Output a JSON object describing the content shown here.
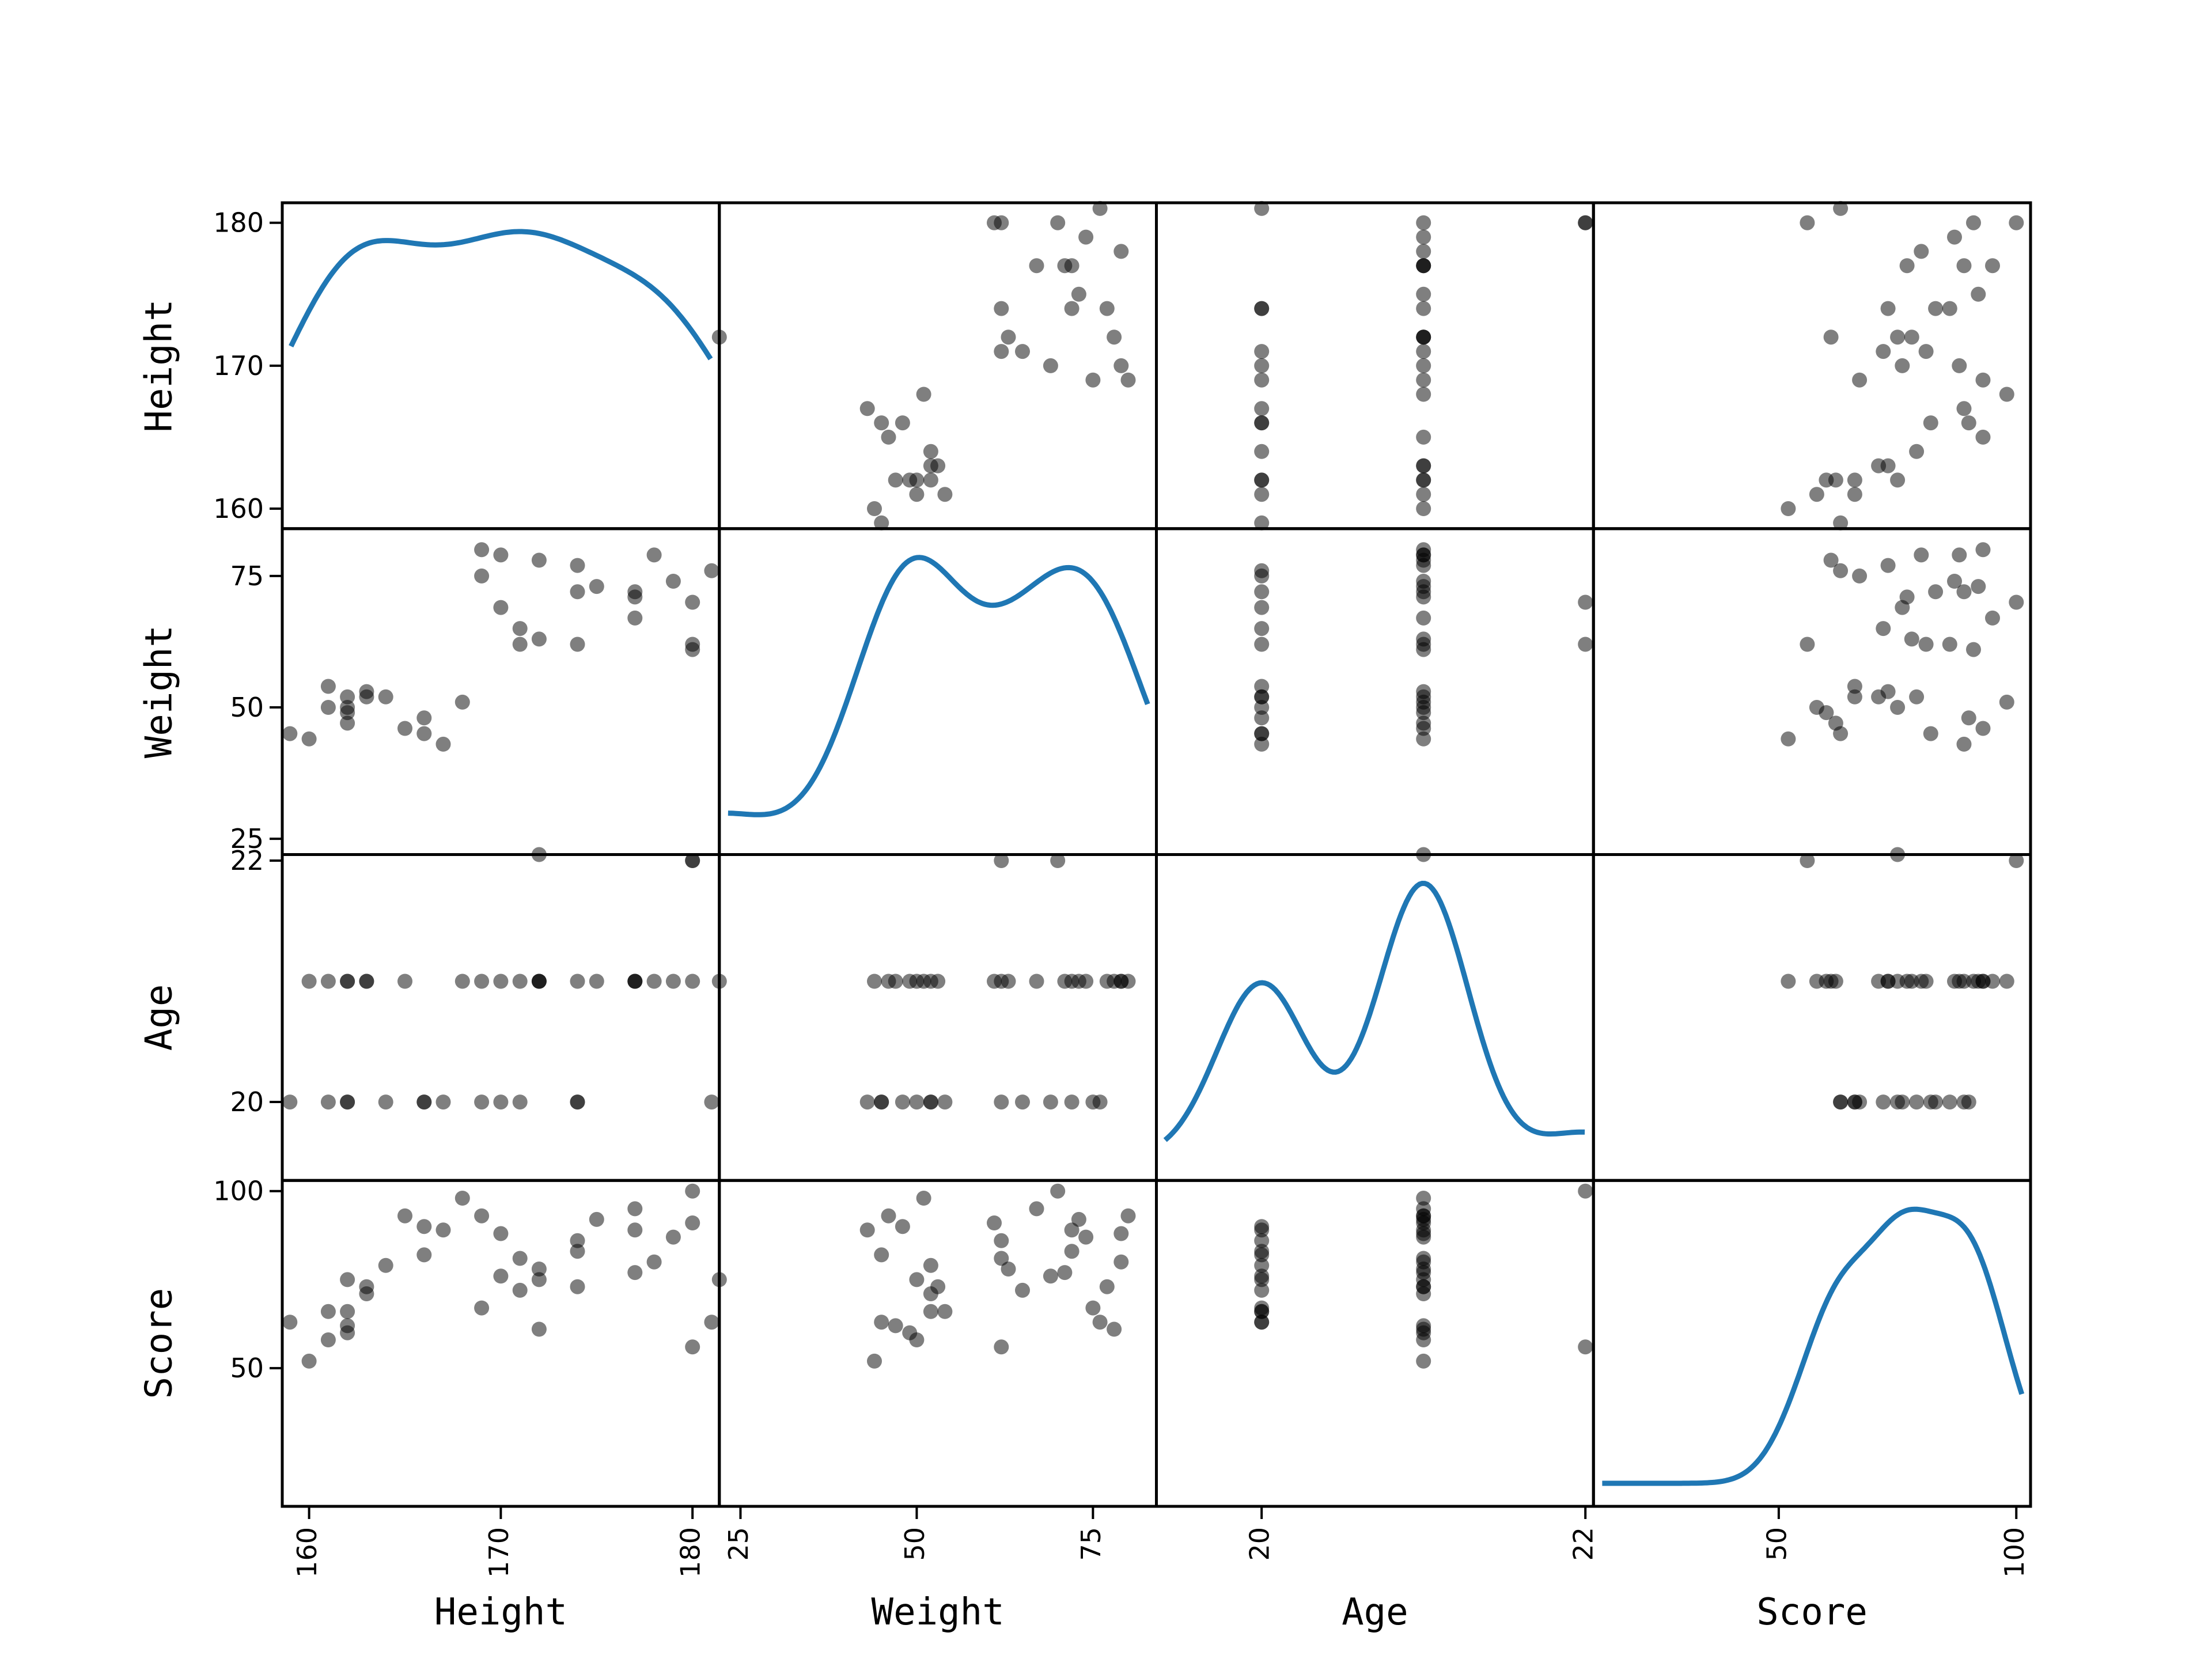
{
  "chart_data": {
    "type": "scatter_matrix",
    "variables": [
      "Height",
      "Weight",
      "Age",
      "Score"
    ],
    "diagonal": "kde",
    "kde_color": "#1f77b4",
    "point_color": "#000000",
    "point_alpha": 0.5,
    "ranges": {
      "Height": [
        158.6,
        181.4
      ],
      "Weight": [
        22,
        84
      ],
      "Age": [
        19.35,
        22.05
      ],
      "Score": [
        11,
        103
      ]
    },
    "ticks": {
      "Height": [
        160,
        170,
        180
      ],
      "Weight": [
        25,
        50,
        75
      ],
      "Age": [
        20,
        22
      ],
      "Score": [
        50,
        100
      ]
    },
    "tick_labels": {
      "Height": [
        "160",
        "170",
        "180"
      ],
      "Weight": [
        "25",
        "50",
        "75"
      ],
      "Age": [
        "20",
        "22"
      ],
      "Score": [
        "50",
        "100"
      ]
    },
    "y_tick_labels": {
      "Height": [
        "160",
        "170",
        "180"
      ],
      "Weight": [
        "25",
        "50",
        "75"
      ],
      "Age": [
        "20",
        "22"
      ],
      "Score": [
        "50",
        "100"
      ]
    },
    "y_tick_values": {
      "Height": [
        160,
        170,
        180
      ],
      "Weight": [
        25,
        50,
        75
      ],
      "Age": [
        20,
        22
      ],
      "Score": [
        50,
        100
      ]
    },
    "rows": [
      {
        "Height": 180,
        "Weight": 62,
        "Age": 22,
        "Score": 56
      },
      {
        "Height": 172,
        "Weight": 22,
        "Age": 21,
        "Score": 75
      },
      {
        "Height": 162,
        "Weight": 50,
        "Age": 20,
        "Score": 75
      },
      {
        "Height": 162,
        "Weight": 47,
        "Age": 21,
        "Score": 62
      },
      {
        "Height": 162,
        "Weight": 49,
        "Age": 21,
        "Score": 60
      },
      {
        "Height": 160,
        "Weight": 44,
        "Age": 21,
        "Score": 52
      },
      {
        "Height": 167,
        "Weight": 43,
        "Age": 20,
        "Score": 89
      },
      {
        "Height": 166,
        "Weight": 45,
        "Age": 20,
        "Score": 82
      },
      {
        "Height": 165,
        "Weight": 46,
        "Age": 21,
        "Score": 93
      },
      {
        "Height": 164,
        "Weight": 52,
        "Age": 20,
        "Score": 79
      },
      {
        "Height": 163,
        "Weight": 53,
        "Age": 21,
        "Score": 73
      },
      {
        "Height": 166,
        "Weight": 48,
        "Age": 20,
        "Score": 90
      },
      {
        "Height": 168,
        "Weight": 51,
        "Age": 21,
        "Score": 98
      },
      {
        "Height": 161,
        "Weight": 54,
        "Age": 20,
        "Score": 66
      },
      {
        "Height": 159,
        "Weight": 45,
        "Age": 20,
        "Score": 63
      },
      {
        "Height": 161,
        "Weight": 50,
        "Age": 21,
        "Score": 58
      },
      {
        "Height": 162,
        "Weight": 52,
        "Age": 20,
        "Score": 66
      },
      {
        "Height": 163,
        "Weight": 52,
        "Age": 21,
        "Score": 71
      },
      {
        "Height": 180,
        "Weight": 61,
        "Age": 21,
        "Score": 91
      },
      {
        "Height": 174,
        "Weight": 62,
        "Age": 20,
        "Score": 86
      },
      {
        "Height": 172,
        "Weight": 63,
        "Age": 21,
        "Score": 78
      },
      {
        "Height": 171,
        "Weight": 62,
        "Age": 21,
        "Score": 81
      },
      {
        "Height": 171,
        "Weight": 65,
        "Age": 20,
        "Score": 72
      },
      {
        "Height": 170,
        "Weight": 69,
        "Age": 20,
        "Score": 76
      },
      {
        "Height": 177,
        "Weight": 67,
        "Age": 21,
        "Score": 95
      },
      {
        "Height": 180,
        "Weight": 70,
        "Age": 22,
        "Score": 100
      },
      {
        "Height": 177,
        "Weight": 71,
        "Age": 21,
        "Score": 77
      },
      {
        "Height": 177,
        "Weight": 72,
        "Age": 21,
        "Score": 89
      },
      {
        "Height": 175,
        "Weight": 73,
        "Age": 21,
        "Score": 92
      },
      {
        "Height": 174,
        "Weight": 72,
        "Age": 20,
        "Score": 83
      },
      {
        "Height": 179,
        "Weight": 74,
        "Age": 21,
        "Score": 87
      },
      {
        "Height": 181,
        "Weight": 76,
        "Age": 20,
        "Score": 63
      },
      {
        "Height": 169,
        "Weight": 75,
        "Age": 20,
        "Score": 67
      },
      {
        "Height": 174,
        "Weight": 77,
        "Age": 21,
        "Score": 73
      },
      {
        "Height": 172,
        "Weight": 78,
        "Age": 21,
        "Score": 61
      },
      {
        "Height": 178,
        "Weight": 79,
        "Age": 21,
        "Score": 80
      },
      {
        "Height": 170,
        "Weight": 79,
        "Age": 21,
        "Score": 88
      },
      {
        "Height": 169,
        "Weight": 80,
        "Age": 21,
        "Score": 93
      }
    ]
  }
}
